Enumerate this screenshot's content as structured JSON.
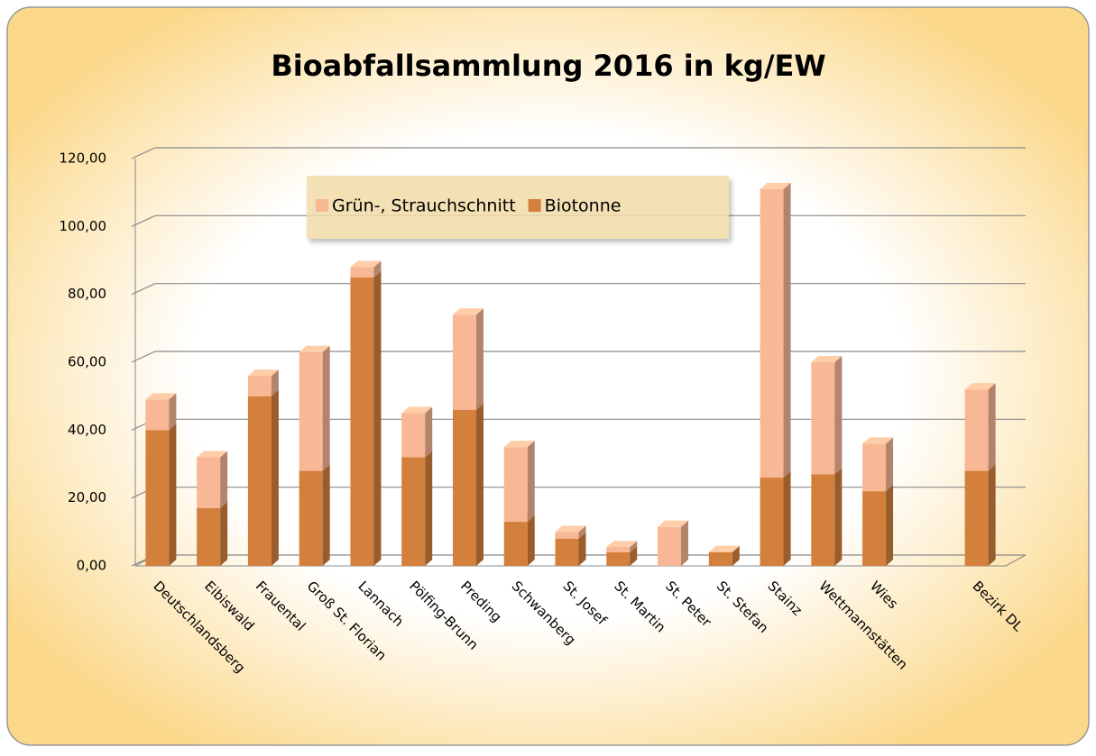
{
  "chart_data": {
    "type": "bar3d_stacked",
    "title": "Bioabfallsammlung 2016 in kg/EW",
    "categories": [
      "Deutschlandsberg",
      "Eibiswald",
      "Frauental",
      "Groß St. Florian",
      "Lannach",
      "Pölfing-Brunn",
      "Preding",
      "Schwanberg",
      "St. Josef",
      "St. Martin",
      "St. Peter",
      "St. Stefan",
      "Stainz",
      "Wettmannstätten",
      "Wies",
      null,
      "Bezirk DL"
    ],
    "series": [
      {
        "name": "Biotonne",
        "color": "#d4803d",
        "values": [
          40,
          17,
          50,
          28,
          85,
          32,
          46,
          13,
          8,
          4,
          0,
          4,
          26,
          27,
          22,
          null,
          28
        ]
      },
      {
        "name": "Grün-, Strauchschnitt",
        "color": "#f8b896",
        "values": [
          9,
          15,
          6,
          35,
          3,
          13,
          28,
          22,
          2,
          1.5,
          11.5,
          0,
          85,
          33,
          14,
          null,
          24
        ]
      }
    ],
    "ylim": [
      0,
      120
    ],
    "yticks": [
      {
        "value": 0,
        "label": "0,00"
      },
      {
        "value": 20,
        "label": "20,00"
      },
      {
        "value": 40,
        "label": "40,00"
      },
      {
        "value": 60,
        "label": "60,00"
      },
      {
        "value": 80,
        "label": "80,00"
      },
      {
        "value": 100,
        "label": "100,00"
      },
      {
        "value": 120,
        "label": "120,00"
      }
    ],
    "grid": true
  }
}
